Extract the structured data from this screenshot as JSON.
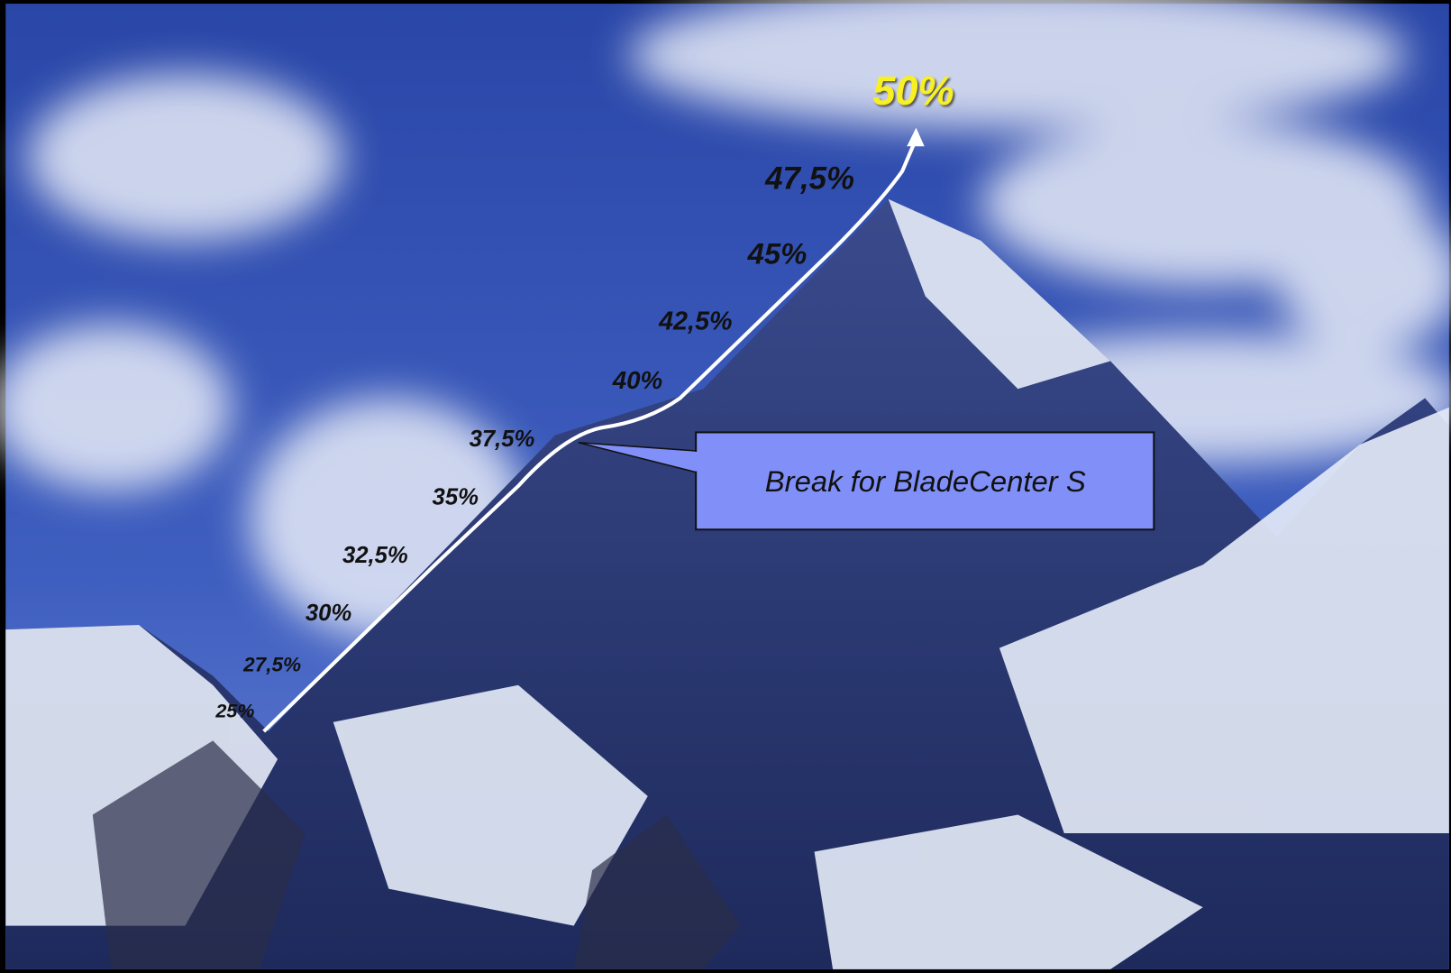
{
  "labels": [
    "25%",
    "27,5%",
    "30%",
    "32,5%",
    "35%",
    "37,5%",
    "40%",
    "42,5%",
    "45%",
    "47,5%"
  ],
  "peak_label": "50%",
  "callout": "Break for BladeCenter S"
}
